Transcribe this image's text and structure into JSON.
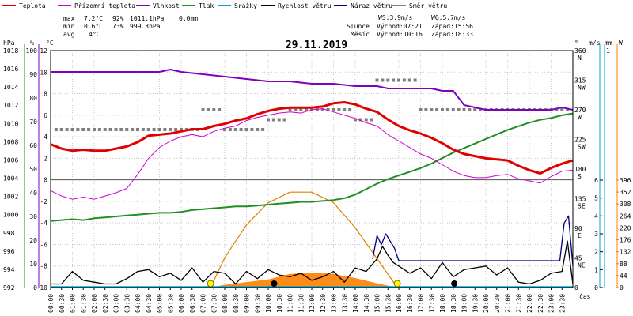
{
  "legend": [
    {
      "label": "Teplota",
      "color": "#e00000"
    },
    {
      "label": "Přízemní teplota",
      "color": "#d000d0"
    },
    {
      "label": "Vlhkost",
      "color": "#8000c0"
    },
    {
      "label": "Tlak",
      "color": "#209020"
    },
    {
      "label": "Srážky",
      "color": "#00a0d0"
    },
    {
      "label": "Rychlost větru",
      "color": "#000000"
    },
    {
      "label": "Náraz větru",
      "color": "#000080"
    },
    {
      "label": "Směr větru",
      "color": "#808080"
    }
  ],
  "stats": {
    "max": {
      "label": "max",
      "temp": "7.2°C",
      "hum": "92%",
      "press": "1011.1hPa",
      "rain": "0.0mm"
    },
    "min": {
      "label": "min",
      "temp": "0.6°C",
      "hum": "73%",
      "press": "999.3hPa"
    },
    "avg": {
      "label": "avg",
      "temp": "4°C"
    }
  },
  "wind_info": {
    "ws": "WS:3.9m/s",
    "wg": "WG:5.7m/s"
  },
  "sun": {
    "label": "Slunce",
    "rise": "Východ:07:21",
    "set": "Západ:15:56"
  },
  "moon": {
    "label": "Měsíc",
    "rise": "Východ:10:16",
    "set": "Západ:18:33"
  },
  "date": "29.11.2019",
  "axis_units": {
    "press": "hPa",
    "hum": "%",
    "temp": "°C",
    "deg": "°",
    "ms": "m/s",
    "mm": "mm",
    "wm2": "W",
    "x": "čas"
  },
  "colors": {
    "temp": "#e00000",
    "ground": "#d000d0",
    "hum": "#8000c0",
    "press": "#209020",
    "rain": "#00a0d0",
    "wind": "#000000",
    "gust": "#000080",
    "dir": "#808080",
    "sun": "#e08000",
    "solar": "#ff8000"
  },
  "chart_data": {
    "type": "line",
    "title": "29.11.2019",
    "xlabel": "čas",
    "x_ticks": [
      "00:00",
      "00:30",
      "01:00",
      "01:30",
      "02:00",
      "02:30",
      "03:00",
      "03:30",
      "04:00",
      "04:30",
      "05:00",
      "05:30",
      "06:00",
      "06:30",
      "07:00",
      "07:30",
      "08:00",
      "08:30",
      "09:00",
      "09:30",
      "10:00",
      "10:30",
      "11:00",
      "11:30",
      "12:00",
      "12:30",
      "13:00",
      "13:30",
      "14:00",
      "14:30",
      "15:00",
      "15:30",
      "16:00",
      "16:30",
      "17:00",
      "17:30",
      "18:00",
      "18:30",
      "19:00",
      "19:30",
      "20:00",
      "20:30",
      "21:00",
      "21:30",
      "22:00",
      "22:30",
      "23:00",
      "23:30"
    ],
    "x_range_hours": [
      0,
      24
    ],
    "axes": {
      "press_hpa": {
        "range": [
          992,
          1018
        ],
        "ticks": [
          992,
          994,
          996,
          998,
          1000,
          1002,
          1004,
          1006,
          1008,
          1010,
          1012,
          1014,
          1016,
          1018
        ]
      },
      "hum_pct": {
        "range": [
          0,
          100
        ],
        "ticks": [
          0,
          10,
          20,
          30,
          40,
          50,
          60,
          70,
          80,
          90,
          100
        ]
      },
      "temp_c": {
        "range": [
          -10,
          12
        ],
        "ticks": [
          12,
          10,
          8,
          6,
          4,
          2,
          0,
          -2,
          -4,
          -6,
          -8,
          -10
        ]
      },
      "dir_deg": {
        "ticks": [
          "360",
          "N",
          "315",
          "NW",
          "270",
          "W",
          "225",
          "SW",
          "180",
          "S",
          "135",
          "SE",
          "90",
          "E",
          "45",
          "NE",
          "0"
        ]
      },
      "wind_ms": {
        "range": [
          0,
          6
        ],
        "ticks": [
          6,
          5,
          4,
          3,
          2,
          1,
          0
        ]
      },
      "rain_mm": {
        "ticks": [
          1,
          0
        ]
      },
      "solar_wm2": {
        "range": [
          0,
          396
        ],
        "ticks": [
          396,
          352,
          308,
          264,
          220,
          176,
          132,
          88,
          44,
          0
        ]
      }
    },
    "series": [
      {
        "name": "Teplota",
        "unit": "°C",
        "x": [
          0,
          0.5,
          1,
          1.5,
          2,
          2.5,
          3,
          3.5,
          4,
          4.5,
          5,
          5.5,
          6,
          6.5,
          7,
          7.5,
          8,
          8.5,
          9,
          9.5,
          10,
          10.5,
          11,
          11.5,
          12,
          12.5,
          13,
          13.5,
          14,
          14.5,
          15,
          15.5,
          16,
          16.5,
          17,
          17.5,
          18,
          18.5,
          19,
          19.5,
          20,
          20.5,
          21,
          21.5,
          22,
          22.5,
          23,
          23.5,
          24
        ],
        "y": [
          3.3,
          2.9,
          2.7,
          2.8,
          2.7,
          2.7,
          2.9,
          3.1,
          3.5,
          4.1,
          4.2,
          4.3,
          4.5,
          4.7,
          4.7,
          5.0,
          5.2,
          5.5,
          5.7,
          6.1,
          6.4,
          6.6,
          6.7,
          6.7,
          6.7,
          6.8,
          7.1,
          7.2,
          7.0,
          6.6,
          6.3,
          5.6,
          5.0,
          4.6,
          4.3,
          3.9,
          3.4,
          2.8,
          2.4,
          2.2,
          2.0,
          1.9,
          1.8,
          1.3,
          0.9,
          0.6,
          1.1,
          1.5,
          1.8
        ]
      },
      {
        "name": "Přízemní teplota",
        "unit": "°C",
        "x": [
          0,
          0.5,
          1,
          1.5,
          2,
          2.5,
          3,
          3.5,
          4,
          4.5,
          5,
          5.5,
          6,
          6.5,
          7,
          7.5,
          8,
          8.5,
          9,
          9.5,
          10,
          10.5,
          11,
          11.5,
          12,
          12.5,
          13,
          13.5,
          14,
          14.5,
          15,
          15.5,
          16,
          16.5,
          17,
          17.5,
          18,
          18.5,
          19,
          19.5,
          20,
          20.5,
          21,
          21.5,
          22,
          22.5,
          23,
          23.5,
          24
        ],
        "y": [
          -1.0,
          -1.5,
          -1.8,
          -1.6,
          -1.8,
          -1.5,
          -1.2,
          -0.8,
          0.5,
          2.0,
          3.0,
          3.6,
          4.0,
          4.2,
          4.0,
          4.5,
          4.8,
          5.0,
          5.5,
          5.8,
          6.0,
          6.2,
          6.3,
          6.2,
          6.5,
          6.6,
          6.3,
          6.0,
          5.7,
          5.3,
          5.0,
          4.2,
          3.6,
          3.0,
          2.4,
          2.0,
          1.4,
          0.8,
          0.4,
          0.2,
          0.2,
          0.4,
          0.5,
          0.1,
          -0.1,
          -0.3,
          0.3,
          0.8,
          0.9
        ]
      },
      {
        "name": "Vlhkost",
        "unit": "%",
        "x": [
          0,
          1,
          2,
          3,
          4,
          5,
          5.5,
          6,
          7,
          8,
          9,
          10,
          11,
          12,
          13,
          14,
          15,
          15.5,
          16,
          16.5,
          17,
          17.5,
          18,
          18.5,
          19,
          19.5,
          20,
          21,
          22,
          23,
          23.5,
          24
        ],
        "y": [
          91,
          91,
          91,
          91,
          91,
          91,
          92,
          91,
          90,
          89,
          88,
          87,
          87,
          86,
          86,
          85,
          85,
          84,
          84,
          84,
          84,
          84,
          83,
          83,
          77,
          76,
          75,
          75,
          75,
          75,
          76,
          75
        ]
      },
      {
        "name": "Tlak",
        "unit": "hPa",
        "x": [
          0,
          0.5,
          1,
          1.5,
          2,
          2.5,
          3,
          3.5,
          4,
          4.5,
          5,
          5.5,
          6,
          6.5,
          7,
          7.5,
          8,
          8.5,
          9,
          9.5,
          10,
          10.5,
          11,
          11.5,
          12,
          12.5,
          13,
          13.5,
          14,
          14.5,
          15,
          15.5,
          16,
          16.5,
          17,
          17.5,
          18,
          18.5,
          19,
          19.5,
          20,
          20.5,
          21,
          21.5,
          22,
          22.5,
          23,
          23.5,
          24
        ],
        "y": [
          999.3,
          999.4,
          999.5,
          999.4,
          999.6,
          999.7,
          999.8,
          999.9,
          1000.0,
          1000.1,
          1000.2,
          1000.2,
          1000.3,
          1000.5,
          1000.6,
          1000.7,
          1000.8,
          1000.9,
          1000.9,
          1001.0,
          1001.1,
          1001.2,
          1001.3,
          1001.4,
          1001.4,
          1001.5,
          1001.6,
          1001.8,
          1002.2,
          1002.8,
          1003.4,
          1003.9,
          1004.3,
          1004.7,
          1005.1,
          1005.6,
          1006.2,
          1006.8,
          1007.3,
          1007.8,
          1008.3,
          1008.8,
          1009.3,
          1009.7,
          1010.1,
          1010.4,
          1010.6,
          1010.9,
          1011.1
        ]
      },
      {
        "name": "Rychlost větru",
        "unit": "m/s",
        "x": [
          0,
          0.5,
          1,
          1.5,
          2,
          2.5,
          3,
          3.5,
          4,
          4.5,
          5,
          5.5,
          6,
          6.5,
          7,
          7.5,
          8,
          8.5,
          9,
          9.5,
          10,
          10.5,
          11,
          11.5,
          12,
          12.5,
          13,
          13.5,
          14,
          14.5,
          15,
          15.25,
          15.5,
          15.75,
          16,
          16.5,
          17,
          17.5,
          18,
          18.5,
          19,
          19.5,
          20,
          20.5,
          21,
          21.5,
          22,
          22.5,
          23,
          23.5,
          23.75,
          24
        ],
        "y": [
          0.2,
          0.2,
          0.9,
          0.4,
          0.3,
          0.2,
          0.2,
          0.5,
          0.9,
          1.0,
          0.6,
          0.8,
          0.4,
          1.1,
          0.3,
          0.9,
          0.8,
          0.2,
          0.9,
          0.5,
          1.0,
          0.7,
          0.6,
          0.8,
          0.4,
          0.6,
          0.9,
          0.3,
          1.1,
          0.9,
          1.6,
          2.3,
          1.8,
          1.4,
          1.2,
          0.8,
          1.1,
          0.5,
          1.4,
          0.6,
          1.0,
          1.1,
          1.2,
          0.7,
          1.1,
          0.3,
          0.2,
          0.4,
          0.8,
          0.9,
          2.6,
          0.2
        ]
      },
      {
        "name": "Náraz větru",
        "unit": "m/s",
        "x": [
          14.8,
          15.0,
          15.2,
          15.4,
          15.6,
          15.8,
          16.0,
          23.4,
          23.6,
          23.8,
          24.0
        ],
        "y": [
          1.6,
          2.9,
          2.4,
          3.0,
          2.6,
          2.2,
          1.5,
          1.5,
          3.6,
          4.0,
          1.2
        ]
      },
      {
        "name": "Směr větru",
        "unit": "°",
        "x": [
          0,
          2,
          4,
          6,
          7,
          8,
          9,
          10,
          11,
          12,
          13,
          14,
          15,
          16,
          17,
          18,
          19,
          20,
          21,
          22,
          23,
          24
        ],
        "y": [
          240,
          240,
          240,
          240,
          270,
          240,
          240,
          255,
          270,
          270,
          270,
          255,
          315,
          315,
          270,
          270,
          270,
          270,
          270,
          270,
          270,
          270
        ]
      },
      {
        "name": "Solární radiace",
        "unit": "W",
        "x": [
          7.35,
          8,
          9,
          10,
          11,
          12,
          13,
          14,
          15,
          15.93
        ],
        "y": [
          0,
          10,
          20,
          30,
          50,
          55,
          50,
          35,
          15,
          0
        ]
      },
      {
        "name": "Výška slunce",
        "x": [
          7.35,
          8,
          9,
          10,
          11,
          12,
          13,
          14,
          15,
          15.93
        ],
        "y": [
          0,
          0.31,
          0.65,
          0.88,
          0.99,
          0.99,
          0.88,
          0.62,
          0.3,
          0
        ]
      }
    ],
    "markers": [
      {
        "name": "sunrise",
        "x": 7.35
      },
      {
        "name": "moonrise",
        "x": 10.27
      },
      {
        "name": "sunset",
        "x": 15.93
      },
      {
        "name": "moonset",
        "x": 18.55
      }
    ],
    "grid": true,
    "legend_position": "top"
  }
}
